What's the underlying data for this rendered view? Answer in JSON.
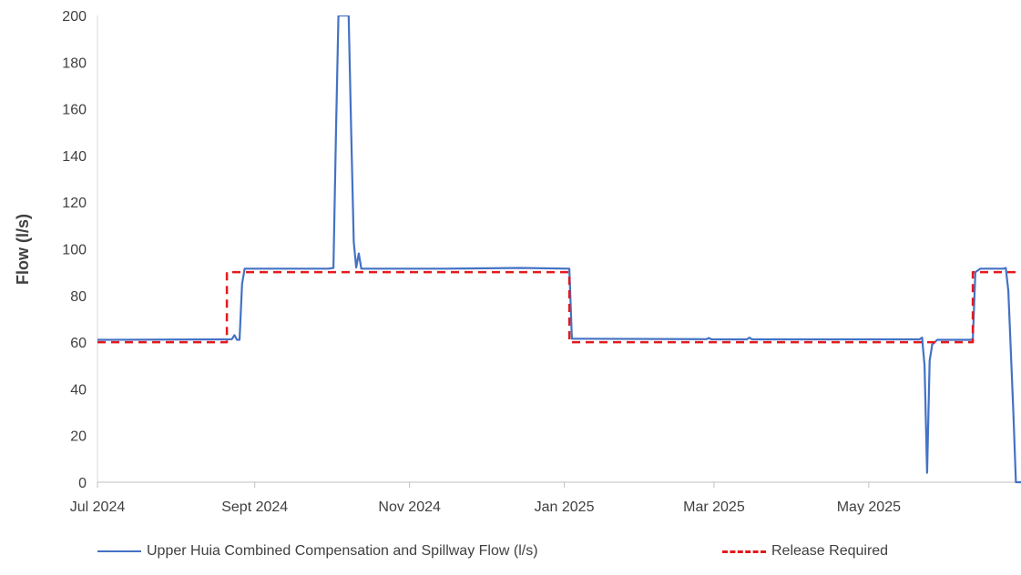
{
  "chart_data": {
    "type": "line",
    "title": "",
    "xlabel": "",
    "ylabel": "Flow (l/s)",
    "ylim": [
      0,
      200
    ],
    "yticks": [
      0,
      20,
      40,
      60,
      80,
      100,
      120,
      140,
      160,
      180,
      200
    ],
    "xlim": [
      "2024-07-01",
      "2025-06-30"
    ],
    "xticks": [
      {
        "date": "2024-07-01",
        "label": "Jul 2024"
      },
      {
        "date": "2024-09-01",
        "label": "Sept 2024"
      },
      {
        "date": "2024-11-01",
        "label": "Nov 2024"
      },
      {
        "date": "2025-01-01",
        "label": "Jan 2025"
      },
      {
        "date": "2025-03-01",
        "label": "Mar 2025"
      },
      {
        "date": "2025-05-01",
        "label": "May 2025"
      }
    ],
    "grid": false,
    "legend_position": "bottom",
    "series": [
      {
        "name": "Upper Huia Combined Compensation and Spillway Flow (l/s)",
        "color": "#4472c4",
        "style": "solid",
        "points": [
          [
            "2024-07-01",
            61
          ],
          [
            "2024-08-20",
            61.2
          ],
          [
            "2024-08-23",
            61.3
          ],
          [
            "2024-08-24",
            63
          ],
          [
            "2024-08-25",
            61
          ],
          [
            "2024-08-26",
            61
          ],
          [
            "2024-08-27",
            85
          ],
          [
            "2024-08-28",
            91.5
          ],
          [
            "2024-09-30",
            91.5
          ],
          [
            "2024-10-02",
            91.8
          ],
          [
            "2024-10-03",
            150
          ],
          [
            "2024-10-04",
            200
          ],
          [
            "2024-10-08",
            200
          ],
          [
            "2024-10-09",
            150
          ],
          [
            "2024-10-10",
            103
          ],
          [
            "2024-10-11",
            92
          ],
          [
            "2024-10-12",
            98
          ],
          [
            "2024-10-13",
            91.5
          ],
          [
            "2024-11-15",
            91.5
          ],
          [
            "2024-12-15",
            91.8
          ],
          [
            "2025-01-03",
            91.5
          ],
          [
            "2025-01-04",
            61.5
          ],
          [
            "2025-02-26",
            61.3
          ],
          [
            "2025-02-27",
            61.8
          ],
          [
            "2025-02-28",
            61.2
          ],
          [
            "2025-03-14",
            61.2
          ],
          [
            "2025-03-15",
            62
          ],
          [
            "2025-03-16",
            61.2
          ],
          [
            "2025-05-21",
            61.2
          ],
          [
            "2025-05-22",
            62
          ],
          [
            "2025-05-23",
            50
          ],
          [
            "2025-05-24",
            4
          ],
          [
            "2025-05-25",
            52
          ],
          [
            "2025-05-26",
            59
          ],
          [
            "2025-05-28",
            61
          ],
          [
            "2025-06-10",
            61
          ],
          [
            "2025-06-11",
            61.2
          ],
          [
            "2025-06-12",
            90
          ],
          [
            "2025-06-14",
            91.5
          ],
          [
            "2025-06-23",
            91.5
          ],
          [
            "2025-06-24",
            91.8
          ],
          [
            "2025-06-25",
            82
          ],
          [
            "2025-06-27",
            30
          ],
          [
            "2025-06-28",
            0
          ],
          [
            "2025-07-01",
            0
          ]
        ]
      },
      {
        "name": "Release Required",
        "color": "#e31a1c",
        "style": "dashed",
        "points": [
          [
            "2024-07-01",
            60
          ],
          [
            "2024-08-21",
            60
          ],
          [
            "2024-08-21",
            90
          ],
          [
            "2025-01-03",
            90
          ],
          [
            "2025-01-03",
            60
          ],
          [
            "2025-06-11",
            60
          ],
          [
            "2025-06-11",
            90
          ],
          [
            "2025-07-01",
            90
          ]
        ]
      }
    ]
  }
}
